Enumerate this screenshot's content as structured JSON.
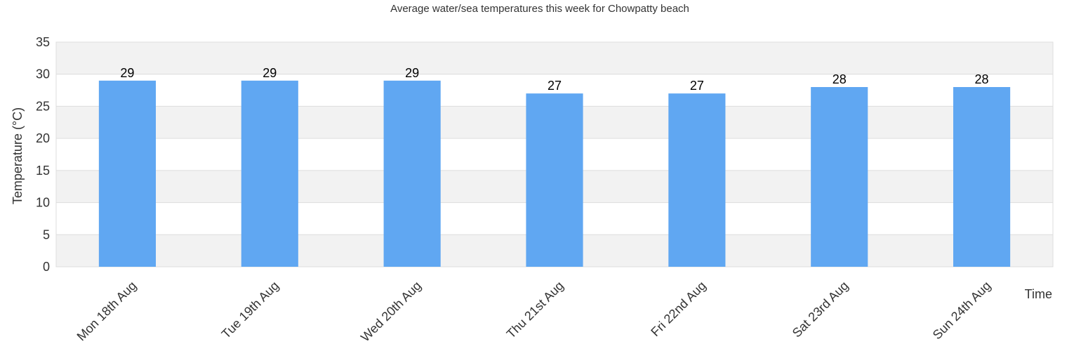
{
  "chart_data": {
    "type": "bar",
    "title": "Average water/sea temperatures this week for Chowpatty beach",
    "xlabel": "Time",
    "ylabel": "Temperature (°C)",
    "categories": [
      "Mon 18th Aug",
      "Tue 19th Aug",
      "Wed 20th Aug",
      "Thu 21st Aug",
      "Fri 22nd Aug",
      "Sat 23rd Aug",
      "Sun 24th Aug"
    ],
    "values": [
      29,
      29,
      29,
      27,
      27,
      28,
      28
    ],
    "ylim": [
      0,
      35
    ],
    "yticks": [
      0,
      5,
      10,
      15,
      20,
      25,
      30,
      35
    ],
    "grid": true,
    "legend": "none",
    "colors": {
      "bar": "#60a7f2",
      "band": "#f2f2f2",
      "grid": "#dddddd",
      "text": "#333333"
    }
  }
}
